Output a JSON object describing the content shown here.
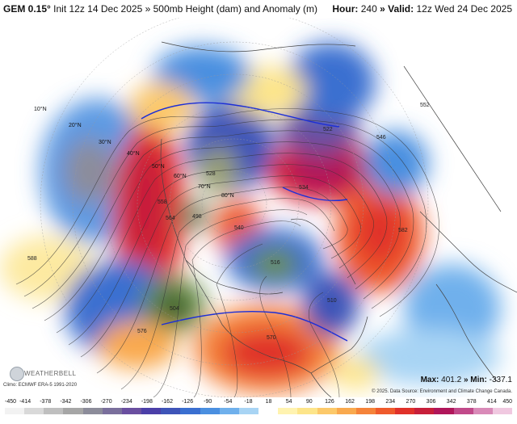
{
  "header": {
    "model": "GEM 0.15°",
    "init": " Init 12z 14 Dec 2025",
    "product": " » 500mb Height (dam) and Anomaly (m)",
    "hour_label": "Hour:",
    "hour_value": "240",
    "valid_label": " » Valid:",
    "valid_value": "12z Wed 24 Dec 2025"
  },
  "footer": {
    "climo": "Climo: ECMWF ERA-5 1991-2020",
    "logo": "WEATHERBELL",
    "copyright": "© 2025. Data Source: Environment and Climate Change Canada.",
    "max_label": "Max:",
    "max_value": "401.2",
    "min_label": " » Min:",
    "min_value": "-337.1"
  },
  "colorbar": {
    "ticks": [
      "-450",
      "-414",
      "-378",
      "-342",
      "-306",
      "-270",
      "-234",
      "-198",
      "-162",
      "-126",
      "-90",
      "-54",
      "-18",
      "18",
      "54",
      "90",
      "126",
      "162",
      "198",
      "234",
      "270",
      "306",
      "342",
      "378",
      "414",
      "450"
    ],
    "colors": [
      "#f2f2f2",
      "#d9d9d9",
      "#bfbfbf",
      "#a6a6a6",
      "#8c8c9a",
      "#7a6f9c",
      "#6a4fa0",
      "#4b3fa8",
      "#3e54b8",
      "#3a6fd0",
      "#4a8fe0",
      "#6fb0ec",
      "#a8d4f4",
      "#ffffff",
      "#fff3b0",
      "#fde58a",
      "#fcc96a",
      "#f9a94e",
      "#f5833a",
      "#ef5a2c",
      "#e0312a",
      "#c71f3a",
      "#b0165a",
      "#c14a8a",
      "#d98ab8",
      "#f0c8e0"
    ]
  },
  "map_labels": {
    "lat": [
      "10°N",
      "20°N",
      "30°N",
      "40°N",
      "50°N",
      "60°N",
      "70°N",
      "80°N"
    ],
    "heights": [
      "588",
      "582",
      "576",
      "570",
      "564",
      "558",
      "552",
      "546",
      "540",
      "534",
      "528",
      "522",
      "516",
      "510",
      "504",
      "498"
    ],
    "anomaly_centers": [
      "+",
      "-"
    ]
  },
  "colors": {
    "positive_anomaly": "#d7202b",
    "negative_anomaly": "#3a6fd0",
    "contour": "#222222",
    "blue_contour": "#1d2fd6",
    "coastline": "#444444"
  }
}
